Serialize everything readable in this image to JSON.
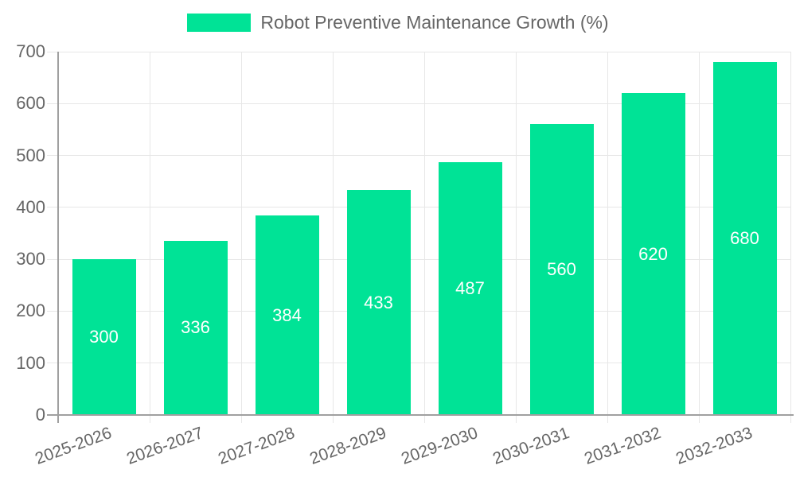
{
  "chart_data": {
    "type": "bar",
    "title": "Robot Preventive Maintenance Growth (%)",
    "series": [
      {
        "name": "Robot Preventive Maintenance Growth (%)",
        "values": [
          300,
          336,
          384,
          433,
          487,
          560,
          620,
          680
        ]
      }
    ],
    "categories": [
      "2025-2026",
      "2026-2027",
      "2027-2028",
      "2028-2029",
      "2029-2030",
      "2030-2031",
      "2031-2032",
      "2032-2033"
    ],
    "xlabel": "",
    "ylabel": "",
    "ylim": [
      0,
      700
    ],
    "yticks": [
      0,
      100,
      200,
      300,
      400,
      500,
      600,
      700
    ],
    "grid": true,
    "legend_position": "top-center",
    "data_labels": "inside-center",
    "x_label_rotation_deg": -20,
    "colors": {
      "bar": "#00E396",
      "axis_text": "#666666",
      "gridline": "#e7e7e7",
      "axis_line": "#a0a0a0",
      "value_label": "#ffffff",
      "background": "#ffffff"
    }
  }
}
